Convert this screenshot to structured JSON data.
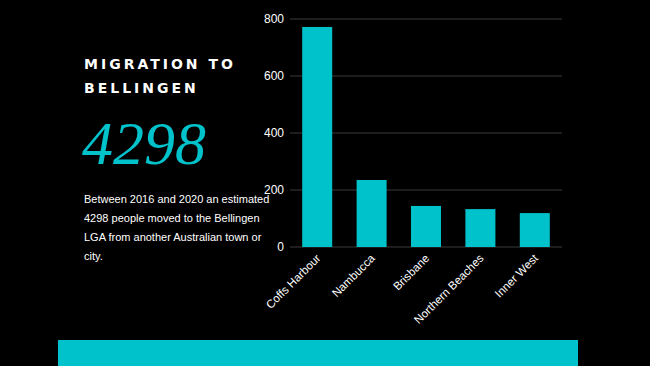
{
  "chart_data": {
    "type": "bar",
    "title": "MIGRATION TO BELLINGEN",
    "annotations": [
      "4298",
      "Between 2016 and 2020 an estimated 4298 people moved to the Bellingen LGA from another Australian town or city."
    ],
    "categories": [
      "Coffs Harbour",
      "Nambucca",
      "Brisbane",
      "Northern Beaches",
      "Inner West"
    ],
    "values": [
      772,
      235,
      144,
      133,
      119
    ],
    "color": "#00c2cb",
    "ylim": [
      0,
      800
    ],
    "yticks": [
      0,
      200,
      400,
      600,
      800
    ],
    "grid": true
  }
}
